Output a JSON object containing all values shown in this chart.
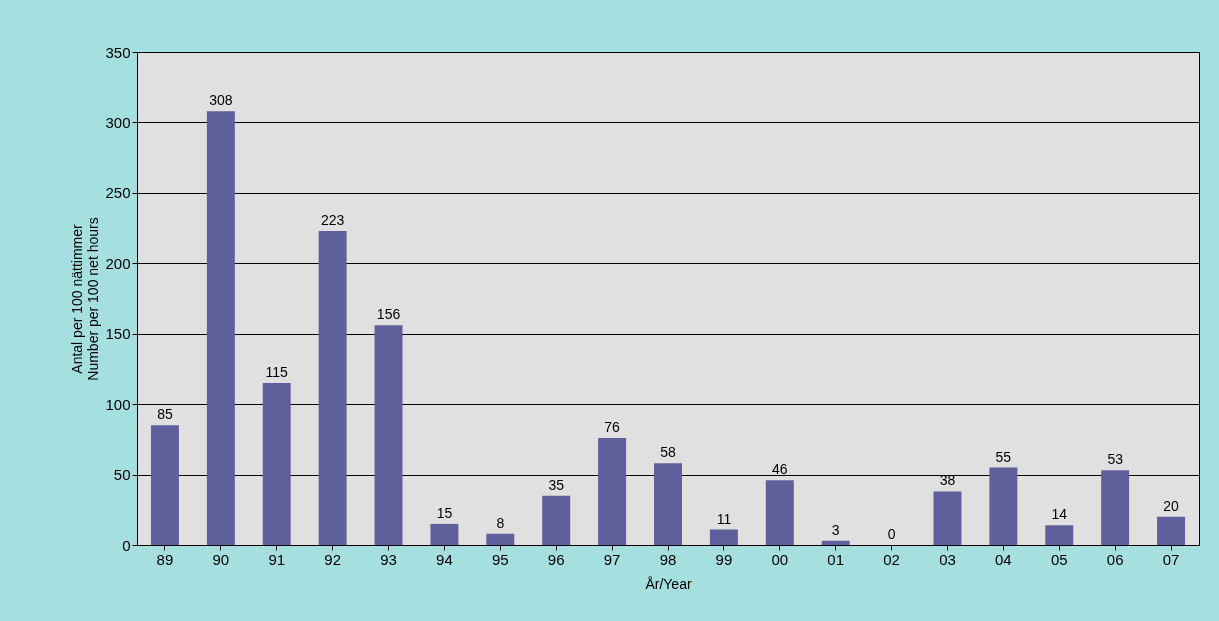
{
  "chart_data": {
    "type": "bar",
    "xlabel": "År/Year",
    "ylabel": "Antal per 100 nättimmer\nNumber per 100 net hours",
    "categories": [
      "89",
      "90",
      "91",
      "92",
      "93",
      "94",
      "95",
      "96",
      "97",
      "98",
      "99",
      "00",
      "01",
      "02",
      "03",
      "04",
      "05",
      "06",
      "07"
    ],
    "values": [
      85,
      308,
      115,
      223,
      156,
      15,
      8,
      35,
      76,
      58,
      11,
      46,
      3,
      0,
      38,
      55,
      14,
      53,
      20
    ],
    "color": "#5f5f9c",
    "ylim": [
      0,
      350
    ],
    "yticks": [
      0,
      50,
      100,
      150,
      200,
      250,
      300,
      350
    ],
    "grid": "y",
    "data_labels": true
  }
}
